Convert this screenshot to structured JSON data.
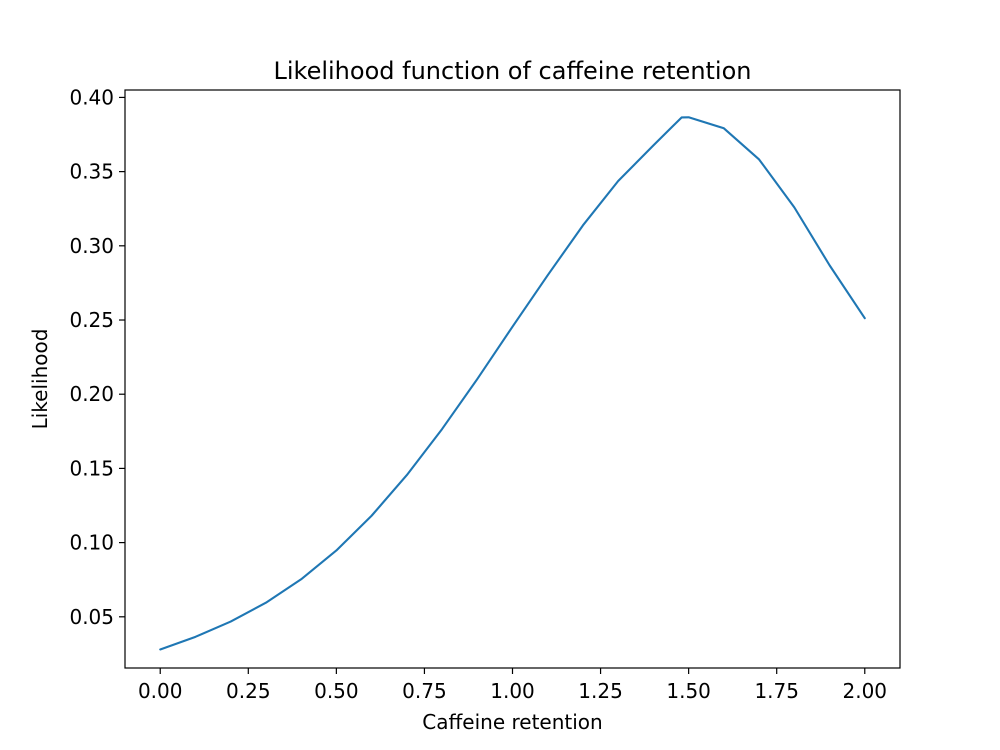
{
  "chart_data": {
    "type": "line",
    "title": "Likelihood function of caffeine retention",
    "xlabel": "Caffeine retention",
    "ylabel": "Likelihood",
    "xlim": [
      -0.1,
      2.1
    ],
    "ylim": [
      0.0155,
      0.405
    ],
    "xticks": [
      0.0,
      0.25,
      0.5,
      0.75,
      1.0,
      1.25,
      1.5,
      1.75,
      2.0
    ],
    "xtick_labels": [
      "0.00",
      "0.25",
      "0.50",
      "0.75",
      "1.00",
      "1.25",
      "1.50",
      "1.75",
      "2.00"
    ],
    "yticks": [
      0.05,
      0.1,
      0.15,
      0.2,
      0.25,
      0.3,
      0.35,
      0.4
    ],
    "ytick_labels": [
      "0.05",
      "0.10",
      "0.15",
      "0.20",
      "0.25",
      "0.30",
      "0.35",
      "0.40"
    ],
    "grid": false,
    "series": [
      {
        "color": "#1f77b4",
        "x": [
          0.0,
          0.1,
          0.2,
          0.3,
          0.4,
          0.5,
          0.6,
          0.7,
          0.8,
          0.9,
          1.0,
          1.1,
          1.2,
          1.3,
          1.4,
          1.48,
          1.5,
          1.6,
          1.7,
          1.8,
          1.9,
          2.0
        ],
        "y": [
          0.028,
          0.0365,
          0.0468,
          0.0595,
          0.0753,
          0.0947,
          0.1181,
          0.1455,
          0.1765,
          0.2102,
          0.2455,
          0.2802,
          0.3138,
          0.3437,
          0.3677,
          0.3865,
          0.3866,
          0.3792,
          0.3582,
          0.3259,
          0.2869,
          0.2512
        ]
      }
    ]
  }
}
